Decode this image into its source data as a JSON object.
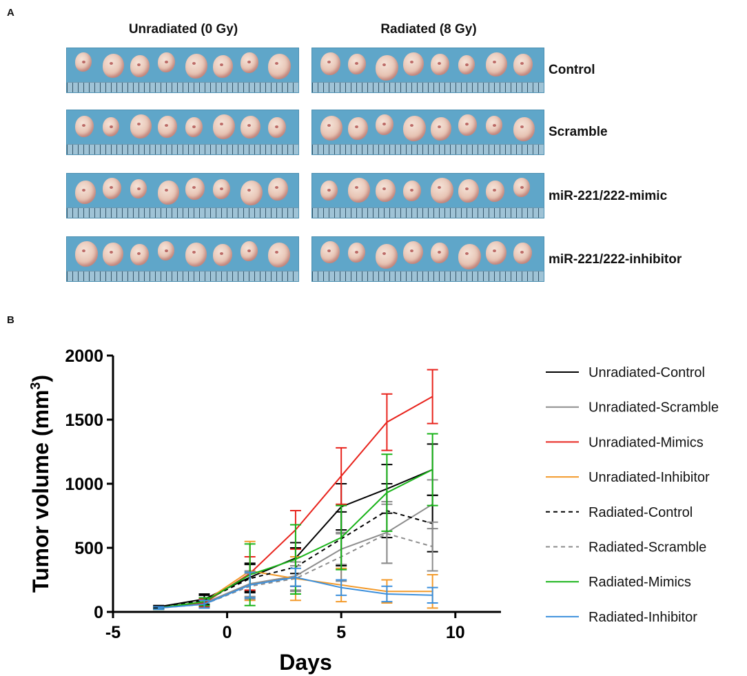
{
  "panel_a": {
    "letter": "A",
    "columns": [
      "Unradiated (0 Gy)",
      "Radiated (8 Gy)"
    ],
    "rows": [
      "Control",
      "Scramble",
      "miR-221/222-mimic",
      "miR-221/222-inhibitor"
    ]
  },
  "panel_b": {
    "letter": "B"
  },
  "chart_data": {
    "type": "line",
    "title": "",
    "xlabel": "Days",
    "ylabel_main": "Tumor volume (mm",
    "ylabel_sup": "3",
    "ylabel_close": ")",
    "xlim": [
      -5,
      12
    ],
    "ylim": [
      0,
      2000
    ],
    "xticks": [
      -5,
      0,
      5,
      10
    ],
    "yticks": [
      0,
      500,
      1000,
      1500,
      2000
    ],
    "x": [
      -3,
      -1,
      1,
      3,
      5,
      7,
      9
    ],
    "series": [
      {
        "name": "Unradiated-Control",
        "color": "#000000",
        "dash": false,
        "values": [
          40,
          100,
          270,
          420,
          820,
          960,
          1110
        ],
        "err": [
          10,
          40,
          110,
          120,
          180,
          190,
          200
        ]
      },
      {
        "name": "Unradiated-Scramble",
        "color": "#8c8c8c",
        "dash": false,
        "values": [
          30,
          70,
          220,
          280,
          490,
          620,
          840
        ],
        "err": [
          10,
          30,
          100,
          110,
          120,
          240,
          190
        ]
      },
      {
        "name": "Unradiated-Mimics",
        "color": "#e8231c",
        "dash": false,
        "values": [
          30,
          70,
          300,
          640,
          1060,
          1480,
          1680
        ],
        "err": [
          10,
          30,
          130,
          150,
          220,
          220,
          210
        ]
      },
      {
        "name": "Unradiated-Inhibitor",
        "color": "#f39a2a",
        "dash": false,
        "values": [
          30,
          80,
          320,
          260,
          210,
          160,
          160
        ],
        "err": [
          10,
          30,
          230,
          170,
          130,
          90,
          130
        ]
      },
      {
        "name": "Radiated-Control",
        "color": "#000000",
        "dash": true,
        "values": [
          35,
          90,
          260,
          350,
          570,
          790,
          690
        ],
        "err": [
          10,
          40,
          110,
          150,
          210,
          210,
          220
        ]
      },
      {
        "name": "Radiated-Scramble",
        "color": "#8c8c8c",
        "dash": true,
        "values": [
          30,
          60,
          200,
          260,
          430,
          610,
          510
        ],
        "err": [
          10,
          30,
          100,
          100,
          190,
          230,
          190
        ]
      },
      {
        "name": "Radiated-Mimics",
        "color": "#18b318",
        "dash": false,
        "values": [
          30,
          80,
          290,
          410,
          580,
          930,
          1110
        ],
        "err": [
          10,
          30,
          240,
          270,
          250,
          300,
          280
        ]
      },
      {
        "name": "Radiated-Inhibitor",
        "color": "#3b8fdc",
        "dash": false,
        "values": [
          30,
          60,
          210,
          270,
          190,
          140,
          130
        ],
        "err": [
          10,
          30,
          100,
          70,
          60,
          60,
          60
        ]
      }
    ]
  }
}
